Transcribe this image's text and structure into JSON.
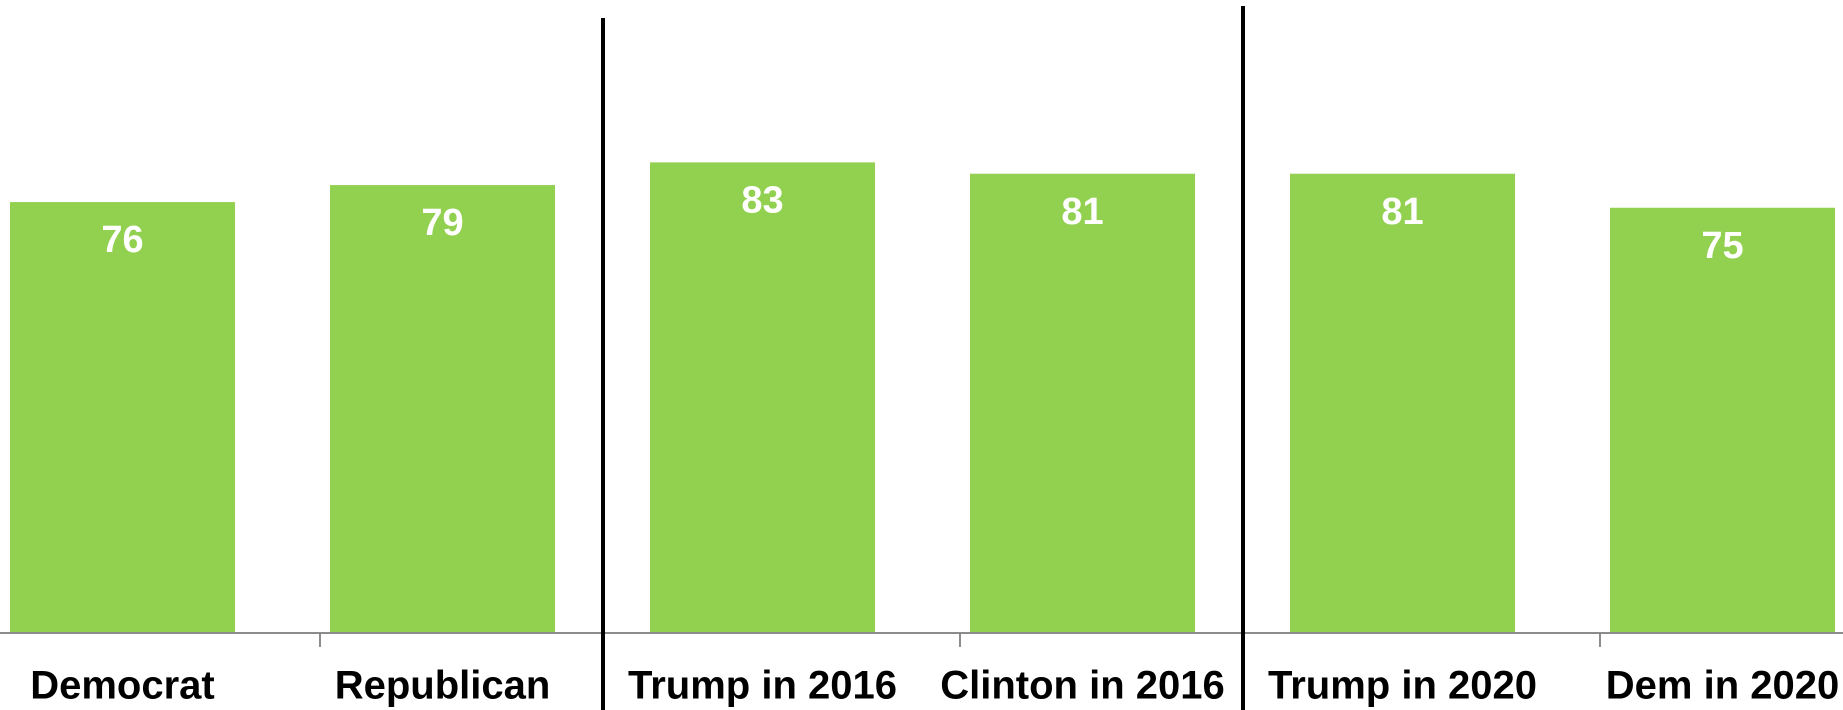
{
  "chart_data": {
    "type": "bar",
    "title": "",
    "xlabel": "",
    "ylabel": "",
    "ylim": [
      0,
      100
    ],
    "grid": false,
    "legend": "none",
    "bar_color": "#92d050",
    "value_label_color": "#ffffff",
    "category_label_color": "#000000",
    "axis_color": "#8c8c8c",
    "divider_color": "#000000",
    "categories": [
      "Democrat",
      "Republican",
      "Trump in 2016",
      "Clinton in 2016",
      "Trump in 2020",
      "Dem in 2020"
    ],
    "values": [
      76,
      79,
      83,
      81,
      81,
      75
    ],
    "data_labels": [
      "76",
      "79",
      "83",
      "81",
      "81",
      "75"
    ],
    "groups": [
      [
        "Democrat",
        "Republican"
      ],
      [
        "Trump in 2016",
        "Clinton in 2016"
      ],
      [
        "Trump in 2020",
        "Dem in 2020"
      ]
    ]
  }
}
